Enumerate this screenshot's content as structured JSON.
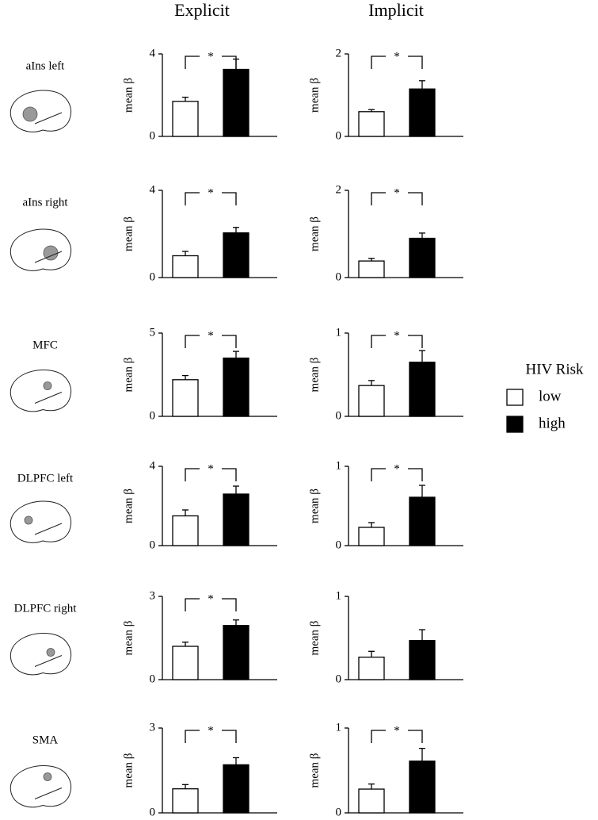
{
  "columns": [
    "Explicit",
    "Implicit"
  ],
  "rows": [
    "aIns left",
    "aIns right",
    "MFC",
    "DLPFC left",
    "DLPFC right",
    "SMA"
  ],
  "legend": {
    "title": "HIV Risk",
    "entries": [
      {
        "name": "low",
        "color": "#ffffff"
      },
      {
        "name": "high",
        "color": "#000000"
      }
    ]
  },
  "chart_data": [
    {
      "type": "bar",
      "ylabel": "mean β",
      "values": [
        1.7,
        3.25
      ],
      "errors": [
        0.2,
        0.5
      ],
      "ylim": [
        0,
        4
      ],
      "yticks": [
        0,
        4
      ],
      "annotation": "*"
    },
    {
      "type": "bar",
      "ylabel": "mean β",
      "values": [
        0.6,
        1.15
      ],
      "errors": [
        0.05,
        0.2
      ],
      "ylim": [
        0,
        2
      ],
      "yticks": [
        0,
        2
      ],
      "annotation": "*"
    },
    {
      "type": "bar",
      "ylabel": "mean β",
      "values": [
        1.0,
        2.05
      ],
      "errors": [
        0.2,
        0.25
      ],
      "ylim": [
        0,
        4
      ],
      "yticks": [
        0,
        4
      ],
      "annotation": "*"
    },
    {
      "type": "bar",
      "ylabel": "mean β",
      "values": [
        0.38,
        0.9
      ],
      "errors": [
        0.06,
        0.12
      ],
      "ylim": [
        0,
        2
      ],
      "yticks": [
        0,
        2
      ],
      "annotation": "*"
    },
    {
      "type": "bar",
      "ylabel": "mean β",
      "values": [
        2.2,
        3.5
      ],
      "errors": [
        0.25,
        0.4
      ],
      "ylim": [
        0,
        5
      ],
      "yticks": [
        0,
        5
      ],
      "annotation": "*"
    },
    {
      "type": "bar",
      "ylabel": "mean β",
      "values": [
        0.37,
        0.65
      ],
      "errors": [
        0.06,
        0.14
      ],
      "ylim": [
        0,
        1
      ],
      "yticks": [
        0,
        1
      ],
      "annotation": "*"
    },
    {
      "type": "bar",
      "ylabel": "mean β",
      "values": [
        1.5,
        2.6
      ],
      "errors": [
        0.3,
        0.4
      ],
      "ylim": [
        0,
        4
      ],
      "yticks": [
        0,
        4
      ],
      "annotation": "*"
    },
    {
      "type": "bar",
      "ylabel": "mean β",
      "values": [
        0.23,
        0.61
      ],
      "errors": [
        0.06,
        0.15
      ],
      "ylim": [
        0,
        1
      ],
      "yticks": [
        0,
        1
      ],
      "annotation": "*"
    },
    {
      "type": "bar",
      "ylabel": "mean β",
      "values": [
        1.2,
        1.95
      ],
      "errors": [
        0.15,
        0.2
      ],
      "ylim": [
        0,
        3
      ],
      "yticks": [
        0,
        3
      ],
      "annotation": "*"
    },
    {
      "type": "bar",
      "ylabel": "mean β",
      "values": [
        0.27,
        0.47
      ],
      "errors": [
        0.07,
        0.13
      ],
      "ylim": [
        0,
        1
      ],
      "yticks": [
        0,
        1
      ]
    },
    {
      "type": "bar",
      "ylabel": "mean β",
      "values": [
        0.85,
        1.7
      ],
      "errors": [
        0.15,
        0.25
      ],
      "ylim": [
        0,
        3
      ],
      "yticks": [
        0,
        3
      ],
      "annotation": "*"
    },
    {
      "type": "bar",
      "ylabel": "mean β",
      "values": [
        0.28,
        0.61
      ],
      "errors": [
        0.06,
        0.15
      ],
      "ylim": [
        0,
        1
      ],
      "yticks": [
        0,
        1
      ],
      "annotation": "*"
    }
  ]
}
